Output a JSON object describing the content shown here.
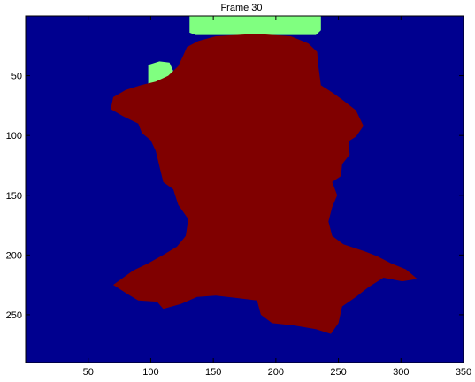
{
  "chart_data": {
    "type": "heatmap",
    "title": "Frame 30",
    "xlabel": "",
    "ylabel": "",
    "xlim": [
      0,
      350
    ],
    "ylim": [
      290,
      0
    ],
    "x_ticks": [
      50,
      100,
      150,
      200,
      250,
      300,
      350
    ],
    "y_ticks": [
      50,
      100,
      150,
      200,
      250
    ],
    "grid": false,
    "legend": "none",
    "colors": {
      "background": "#00008f",
      "figure": "#800000",
      "highlight": "#80ff80"
    },
    "regions": [
      {
        "class": "highlight-top",
        "color_key": "highlight",
        "outline": [
          [
            131,
            0
          ],
          [
            236,
            0
          ],
          [
            236,
            12
          ],
          [
            232,
            16
          ],
          [
            136,
            16
          ],
          [
            131,
            14
          ]
        ]
      },
      {
        "class": "highlight-left",
        "color_key": "highlight",
        "outline": [
          [
            98,
            41
          ],
          [
            107,
            38
          ],
          [
            115,
            39
          ],
          [
            118,
            46
          ],
          [
            112,
            54
          ],
          [
            104,
            59
          ],
          [
            98,
            60
          ]
        ]
      },
      {
        "class": "figure",
        "color_key": "figure",
        "outline": [
          [
            129,
            26
          ],
          [
            138,
            21
          ],
          [
            152,
            17
          ],
          [
            184,
            15
          ],
          [
            212,
            17
          ],
          [
            226,
            23
          ],
          [
            233,
            30
          ],
          [
            234,
            42
          ],
          [
            236,
            58
          ],
          [
            245,
            64
          ],
          [
            253,
            70
          ],
          [
            264,
            79
          ],
          [
            270,
            92
          ],
          [
            264,
            101
          ],
          [
            258,
            105
          ],
          [
            259,
            116
          ],
          [
            253,
            124
          ],
          [
            252,
            134
          ],
          [
            245,
            139
          ],
          [
            249,
            150
          ],
          [
            245,
            160
          ],
          [
            242,
            172
          ],
          [
            245,
            184
          ],
          [
            254,
            191
          ],
          [
            271,
            197
          ],
          [
            281,
            201
          ],
          [
            292,
            207
          ],
          [
            304,
            212
          ],
          [
            313,
            220
          ],
          [
            301,
            222
          ],
          [
            286,
            219
          ],
          [
            274,
            227
          ],
          [
            264,
            235
          ],
          [
            253,
            243
          ],
          [
            250,
            257
          ],
          [
            244,
            266
          ],
          [
            232,
            262
          ],
          [
            215,
            259
          ],
          [
            197,
            257
          ],
          [
            188,
            250
          ],
          [
            185,
            238
          ],
          [
            169,
            236
          ],
          [
            152,
            234
          ],
          [
            137,
            235
          ],
          [
            124,
            241
          ],
          [
            110,
            245
          ],
          [
            105,
            239
          ],
          [
            90,
            238
          ],
          [
            82,
            233
          ],
          [
            70,
            225
          ],
          [
            86,
            213
          ],
          [
            98,
            207
          ],
          [
            110,
            200
          ],
          [
            121,
            193
          ],
          [
            128,
            184
          ],
          [
            130,
            170
          ],
          [
            122,
            158
          ],
          [
            118,
            145
          ],
          [
            110,
            139
          ],
          [
            107,
            126
          ],
          [
            104,
            113
          ],
          [
            100,
            104
          ],
          [
            93,
            98
          ],
          [
            90,
            90
          ],
          [
            78,
            84
          ],
          [
            68,
            78
          ],
          [
            70,
            68
          ],
          [
            80,
            62
          ],
          [
            92,
            58
          ],
          [
            104,
            55
          ],
          [
            114,
            50
          ],
          [
            122,
            42
          ],
          [
            126,
            33
          ]
        ]
      }
    ]
  }
}
